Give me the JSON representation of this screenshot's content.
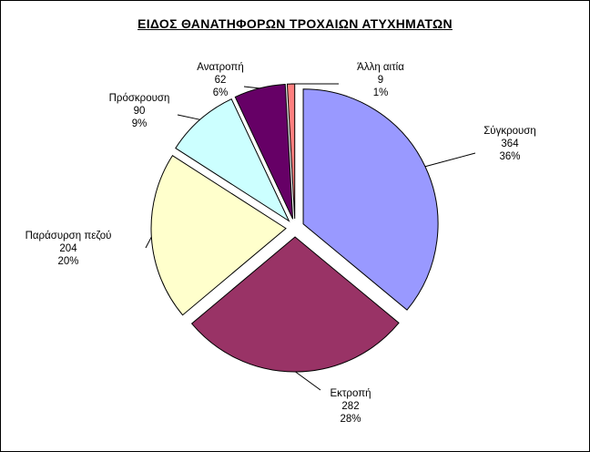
{
  "chart_data": {
    "type": "pie",
    "exploded": true,
    "title": "ΕΙΔΟΣ ΘΑΝΑΤΗΦΟΡΩΝ ΤΡΟΧΑΙΩΝ ΑΤΥΧΗΜΑΤΩΝ",
    "slices": [
      {
        "label": "Σύγκρουση",
        "value": 364,
        "percent": "36%",
        "color": "#9999ff"
      },
      {
        "label": "Εκτροπή",
        "value": 282,
        "percent": "28%",
        "color": "#993366"
      },
      {
        "label": "Παράσυρση πεζού",
        "value": 204,
        "percent": "20%",
        "color": "#ffffcc"
      },
      {
        "label": "Πρόσκρουση",
        "value": 90,
        "percent": "9%",
        "color": "#ccffff"
      },
      {
        "label": "Ανατροπή",
        "value": 62,
        "percent": "6%",
        "color": "#660066"
      },
      {
        "label": "Άλλη αιτία",
        "value": 9,
        "percent": "1%",
        "color": "#ff8080"
      }
    ]
  }
}
